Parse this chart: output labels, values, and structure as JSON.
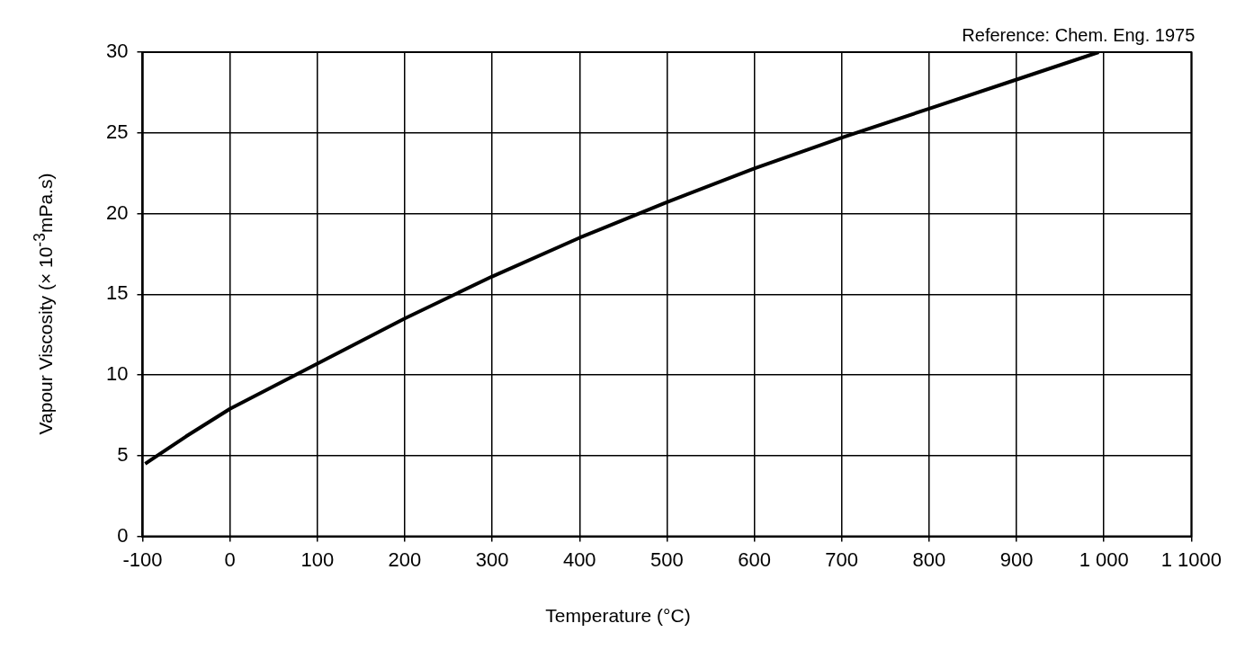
{
  "chart_data": {
    "type": "line",
    "xlabel": "Temperature (°C)",
    "ylabel": "Vapour Viscosity (× 10$^{-3}$mPa.s)",
    "annotations": [
      "Reference: Chem. Eng. 1975"
    ],
    "xlim": [
      -100,
      1100
    ],
    "ylim": [
      0,
      30
    ],
    "xticks": [
      -100,
      0,
      100,
      200,
      300,
      400,
      500,
      600,
      700,
      800,
      900,
      {
        "value": 1000,
        "label": "1 000"
      },
      {
        "value": 1100,
        "label": "1 1000"
      }
    ],
    "yticks": [
      0,
      5,
      10,
      15,
      20,
      25,
      30
    ],
    "grid": true,
    "legend": false,
    "marker": "none",
    "line_style": "solid",
    "series": [
      {
        "color": "#000000",
        "x": [
          -97,
          -50,
          0,
          100,
          200,
          300,
          400,
          500,
          600,
          700,
          800,
          900,
          994
        ],
        "values": [
          4.5,
          6.2,
          7.9,
          10.7,
          13.5,
          16.1,
          18.5,
          20.7,
          22.8,
          24.7,
          26.5,
          28.3,
          30
        ]
      }
    ]
  }
}
